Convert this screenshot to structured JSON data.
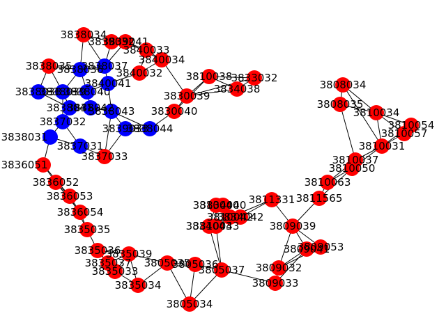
{
  "graph": {
    "colors": {
      "default": "#ff0000",
      "highlight": "#0000ff",
      "edge": "#000000",
      "label": "#000000"
    },
    "nodes": [
      {
        "id": "3838034",
        "group": "default"
      },
      {
        "id": "3839032",
        "group": "default"
      },
      {
        "id": "3839041",
        "group": "default"
      },
      {
        "id": "3840033",
        "group": "default"
      },
      {
        "id": "3840034",
        "group": "default"
      },
      {
        "id": "3840032",
        "group": "default"
      },
      {
        "id": "3838035",
        "group": "default"
      },
      {
        "id": "3838036",
        "group": "highlight"
      },
      {
        "id": "3838037",
        "group": "highlight"
      },
      {
        "id": "3838038",
        "group": "highlight"
      },
      {
        "id": "3838039",
        "group": "highlight"
      },
      {
        "id": "3838040",
        "group": "highlight"
      },
      {
        "id": "3838041",
        "group": "highlight"
      },
      {
        "id": "3838042",
        "group": "highlight"
      },
      {
        "id": "3838043",
        "group": "highlight"
      },
      {
        "id": "3838044",
        "group": "highlight"
      },
      {
        "id": "3838031",
        "group": "highlight"
      },
      {
        "id": "3837031",
        "group": "highlight"
      },
      {
        "id": "3837032",
        "group": "highlight"
      },
      {
        "id": "3839033",
        "group": "highlight"
      },
      {
        "id": "3840041",
        "group": "highlight"
      },
      {
        "id": "3836051",
        "group": "default"
      },
      {
        "id": "3837033",
        "group": "default"
      },
      {
        "id": "3836052",
        "group": "default"
      },
      {
        "id": "3836053",
        "group": "default"
      },
      {
        "id": "3836054",
        "group": "default"
      },
      {
        "id": "3835035",
        "group": "default"
      },
      {
        "id": "3835036",
        "group": "default"
      },
      {
        "id": "3835037",
        "group": "default"
      },
      {
        "id": "3835039",
        "group": "default"
      },
      {
        "id": "3835033",
        "group": "default"
      },
      {
        "id": "3835034",
        "group": "default"
      },
      {
        "id": "3805034",
        "group": "default"
      },
      {
        "id": "3805035",
        "group": "default"
      },
      {
        "id": "3805036",
        "group": "default"
      },
      {
        "id": "3805037",
        "group": "default"
      },
      {
        "id": "3809032",
        "group": "default"
      },
      {
        "id": "3809033",
        "group": "default"
      },
      {
        "id": "3809039",
        "group": "default"
      },
      {
        "id": "3809041",
        "group": "default"
      },
      {
        "id": "3809053",
        "group": "default"
      },
      {
        "id": "3810040",
        "group": "default"
      },
      {
        "id": "3810042",
        "group": "default"
      },
      {
        "id": "3810043",
        "group": "default"
      },
      {
        "id": "3810038",
        "group": "default"
      },
      {
        "id": "3811331",
        "group": "default"
      },
      {
        "id": "3811565",
        "group": "default"
      },
      {
        "id": "3808034",
        "group": "default"
      },
      {
        "id": "3808035",
        "group": "default"
      },
      {
        "id": "3810034",
        "group": "default"
      },
      {
        "id": "3810054",
        "group": "default"
      },
      {
        "id": "3810057",
        "group": "default"
      },
      {
        "id": "3810031",
        "group": "default"
      },
      {
        "id": "3810037",
        "group": "default"
      },
      {
        "id": "3810050",
        "group": "default"
      },
      {
        "id": "3810063",
        "group": "default"
      },
      {
        "id": "3833032",
        "group": "default"
      },
      {
        "id": "3834038",
        "group": "default"
      },
      {
        "id": "3834040",
        "group": "default"
      },
      {
        "id": "3834042",
        "group": "default"
      },
      {
        "id": "3834043",
        "group": "default"
      },
      {
        "id": "3830039",
        "group": "default"
      },
      {
        "id": "3830040",
        "group": "default"
      }
    ]
  }
}
